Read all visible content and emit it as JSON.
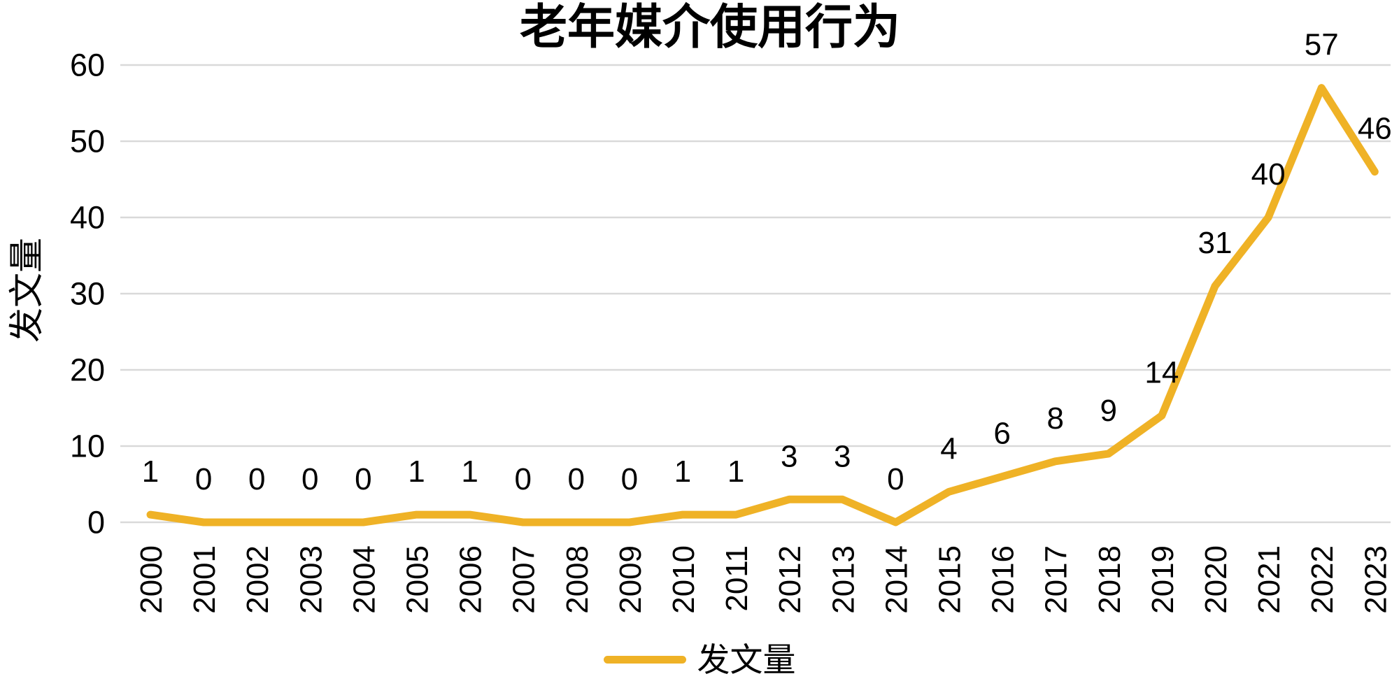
{
  "title": "老年媒介使用行为",
  "colors": {
    "line": "#EFB226",
    "grid": "#D9D9D9",
    "text": "#000000",
    "background": "#FFFFFF"
  },
  "legend": {
    "label": "发文量",
    "position": "bottom"
  },
  "chart_data": {
    "type": "line",
    "title": "老年媒介使用行为",
    "xlabel": "",
    "ylabel": "发文量",
    "categories": [
      "2000",
      "2001",
      "2002",
      "2003",
      "2004",
      "2005",
      "2006",
      "2007",
      "2008",
      "2009",
      "2010",
      "2011",
      "2012",
      "2013",
      "2014",
      "2015",
      "2016",
      "2017",
      "2018",
      "2019",
      "2020",
      "2021",
      "2022",
      "2023"
    ],
    "series": [
      {
        "name": "发文量",
        "color": "#EFB226",
        "values": [
          1,
          0,
          0,
          0,
          0,
          1,
          1,
          0,
          0,
          0,
          1,
          1,
          3,
          3,
          0,
          4,
          6,
          8,
          9,
          14,
          31,
          40,
          57,
          46
        ]
      }
    ],
    "ylim": [
      0,
      60
    ],
    "yticks": [
      0,
      10,
      20,
      30,
      40,
      50,
      60
    ],
    "grid": true,
    "data_labels": true,
    "legend_position": "bottom"
  }
}
